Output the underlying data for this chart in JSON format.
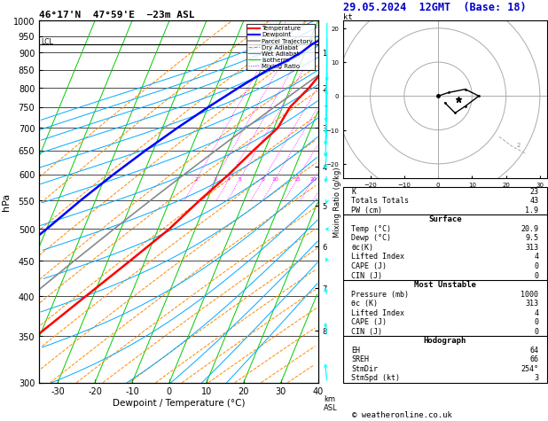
{
  "title_left": "46°17'N  47°59'E  −23m ASL",
  "title_right": "29.05.2024  12GMT  (Base: 18)",
  "xlabel": "Dewpoint / Temperature (°C)",
  "ylabel_left": "hPa",
  "ylabel_right_top": "km",
  "ylabel_right_bot": "ASL",
  "ylabel_mid": "Mixing Ratio (g/kg)",
  "pressure_levels": [
    300,
    350,
    400,
    450,
    500,
    550,
    600,
    650,
    700,
    750,
    800,
    850,
    900,
    950,
    1000
  ],
  "temp_xlim": [
    -35,
    40
  ],
  "temp_line_color": "#ff0000",
  "dewp_line_color": "#0000ff",
  "parcel_color": "#888888",
  "dry_adiabat_color": "#ff8800",
  "wet_adiabat_color": "#00aaff",
  "isotherm_color": "#00cc00",
  "mixing_ratio_color": "#ff00ff",
  "info_K": 23,
  "info_TT": 43,
  "info_PW": "1.9",
  "surf_temp": "20.9",
  "surf_dewp": "9.5",
  "surf_theta": 313,
  "surf_li": 4,
  "surf_cape": 0,
  "surf_cin": 0,
  "mu_pressure": 1000,
  "mu_theta": 313,
  "mu_li": 4,
  "mu_cape": 0,
  "mu_cin": 0,
  "hodo_EH": 64,
  "hodo_SREH": 66,
  "hodo_StmDir": "254°",
  "hodo_StmSpd": 3,
  "lcl_pressure": 925,
  "copyright": "© weatheronline.co.uk",
  "skew_factor": 40
}
